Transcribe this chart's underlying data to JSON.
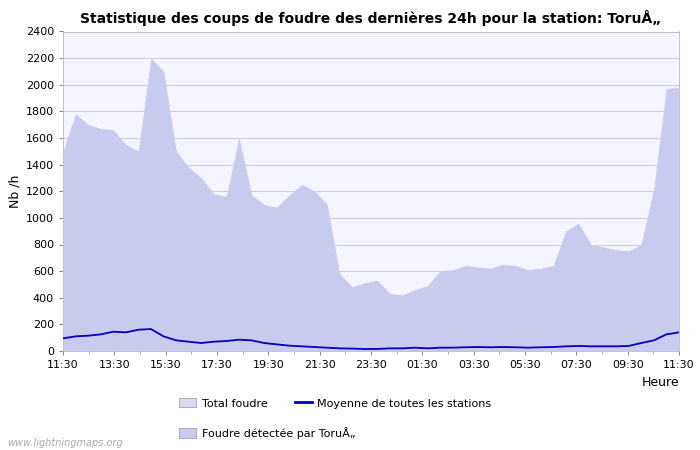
{
  "title": "Statistique des coups de foudre des dernières 24h pour la station: ToruÅ„",
  "ylabel": "Nb /h",
  "xlabel_right": "Heure",
  "watermark": "www.lightningmaps.org",
  "xtick_labels": [
    "11:30",
    "13:30",
    "15:30",
    "17:30",
    "19:30",
    "21:30",
    "23:30",
    "01:30",
    "03:30",
    "05:30",
    "07:30",
    "09:30",
    "11:30"
  ],
  "ylim": [
    0,
    2400
  ],
  "yticks": [
    0,
    200,
    400,
    600,
    800,
    1000,
    1200,
    1400,
    1600,
    1800,
    2000,
    2200,
    2400
  ],
  "bg_color": "#ffffff",
  "plot_bg_color": "#f5f5ff",
  "grid_color": "#c8c8c8",
  "fill_total_color": "#d8daef",
  "fill_local_color": "#c8caee",
  "line_avg_color": "#0000bb",
  "legend_labels": [
    "Total foudre",
    "Moyenne de toutes les stations",
    "Foudre détectée par ToruÅ„"
  ],
  "total_foudre": [
    1500,
    1780,
    1700,
    1670,
    1660,
    1550,
    1500,
    2200,
    2100,
    1500,
    1380,
    1300,
    1180,
    1160,
    1600,
    1170,
    1100,
    1080,
    1170,
    1250,
    1200,
    1100,
    580,
    480,
    510,
    530,
    430,
    420,
    460,
    490,
    600,
    610,
    640,
    630,
    620,
    650,
    640,
    610,
    620,
    640,
    900,
    960,
    800,
    780,
    760,
    750,
    800,
    1220,
    1970,
    1980
  ],
  "local_foudre": [
    1500,
    1780,
    1700,
    1670,
    1660,
    1550,
    1500,
    2200,
    2100,
    1500,
    1380,
    1300,
    1180,
    1160,
    1600,
    1170,
    1100,
    1080,
    1170,
    1250,
    1200,
    1100,
    580,
    480,
    510,
    530,
    430,
    420,
    460,
    490,
    600,
    610,
    640,
    630,
    620,
    650,
    640,
    610,
    620,
    640,
    900,
    960,
    800,
    780,
    760,
    750,
    800,
    1220,
    1970,
    1980
  ],
  "avg_foudre": [
    95,
    110,
    115,
    125,
    145,
    140,
    160,
    165,
    110,
    80,
    70,
    60,
    70,
    75,
    85,
    80,
    60,
    50,
    40,
    35,
    30,
    25,
    20,
    18,
    15,
    15,
    20,
    20,
    25,
    20,
    25,
    25,
    28,
    30,
    28,
    30,
    28,
    25,
    28,
    30,
    35,
    38,
    35,
    35,
    35,
    38,
    60,
    80,
    125,
    140
  ],
  "title_fontsize": 10,
  "axis_fontsize": 8,
  "ylabel_fontsize": 9
}
